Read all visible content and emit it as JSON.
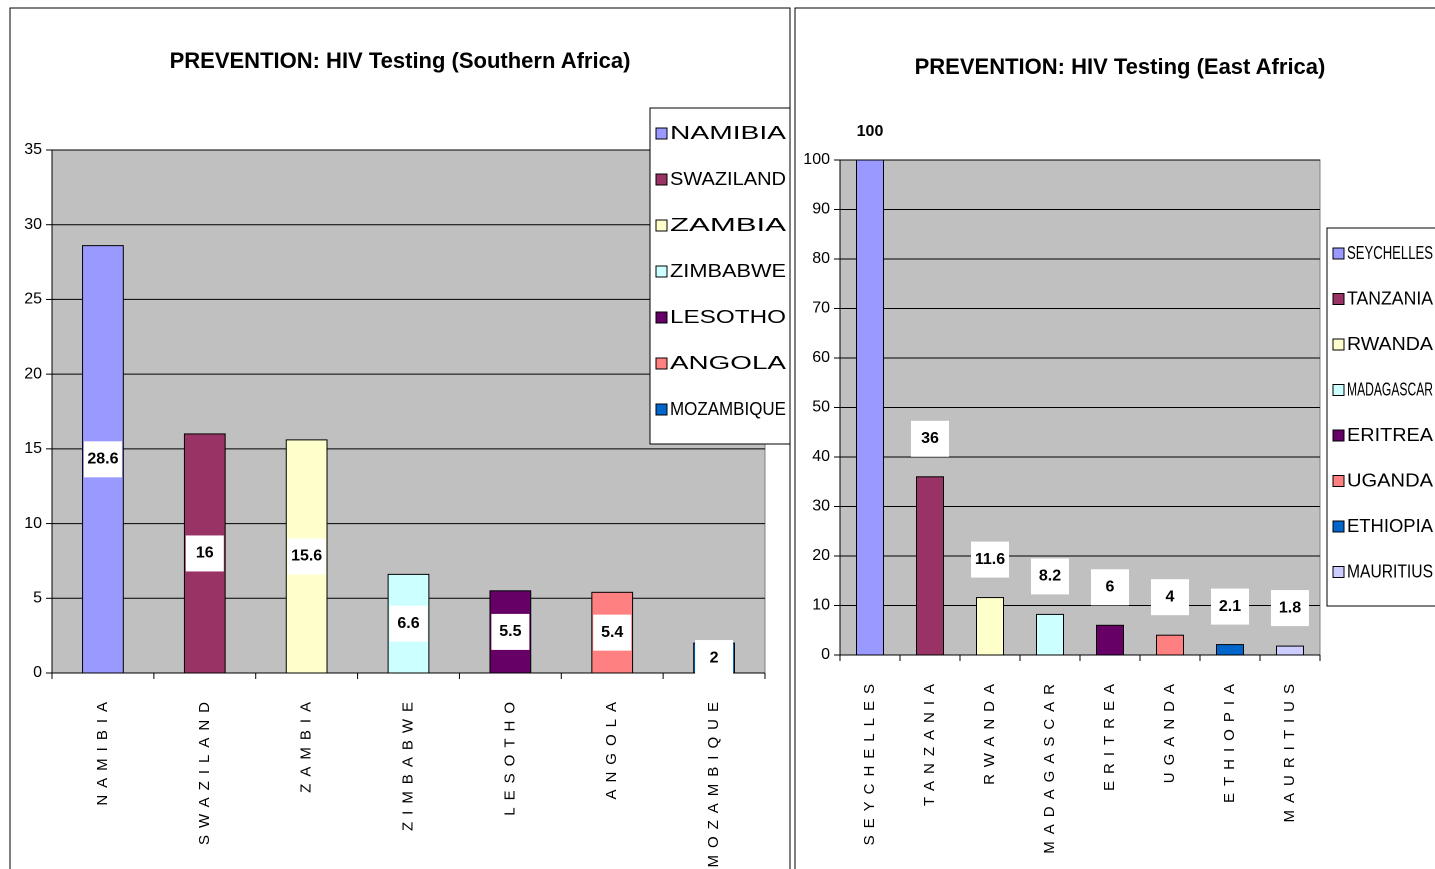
{
  "chart_data": [
    {
      "type": "bar",
      "title": "PREVENTION: HIV Testing (Southern Africa)",
      "categories": [
        "NAMIBIA",
        "SWAZILAND",
        "ZAMBIA",
        "ZIMBABWE",
        "LESOTHO",
        "ANGOLA",
        "MOZAMBIQUE"
      ],
      "values": [
        28.6,
        16,
        15.6,
        6.6,
        5.5,
        5.4,
        2
      ],
      "colors": [
        "#9999ff",
        "#993366",
        "#ffffcc",
        "#ccffff",
        "#660066",
        "#ff8080",
        "#0066cc"
      ],
      "ylim": [
        0,
        35
      ],
      "yticks": [
        0,
        5,
        10,
        15,
        20,
        25,
        30,
        35
      ],
      "grid": true,
      "legend": "upper right"
    },
    {
      "type": "bar",
      "title": "PREVENTION: HIV Testing (East Africa)",
      "categories": [
        "SEYCHELLES",
        "TANZANIA",
        "RWANDA",
        "MADAGASCAR",
        "ERITREA",
        "UGANDA",
        "ETHIOPIA",
        "MAURITIUS"
      ],
      "values": [
        100,
        36,
        11.6,
        8.2,
        6,
        4,
        2.1,
        1.8
      ],
      "colors": [
        "#9999ff",
        "#993366",
        "#ffffcc",
        "#ccffff",
        "#660066",
        "#ff8080",
        "#0066cc",
        "#ccccff"
      ],
      "ylim": [
        0,
        100
      ],
      "yticks": [
        0,
        10,
        20,
        30,
        40,
        50,
        60,
        70,
        80,
        90,
        100
      ],
      "grid": true,
      "legend": "right"
    }
  ]
}
